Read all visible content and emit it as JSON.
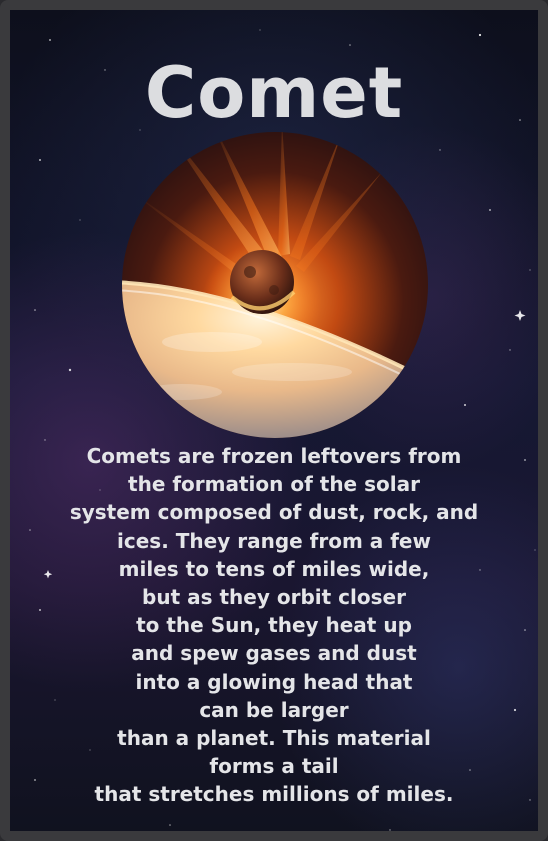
{
  "card": {
    "title": "Comet",
    "description": "Comets are frozen leftovers from\nthe formation of the solar\nsystem composed of dust, rock, and\nices. They range from a few\nmiles to tens of miles wide,\nbut as they orbit closer\nto the Sun, they heat up\nand spew gases and dust\ninto a glowing head that\ncan be larger\nthan a planet. This material\nforms a tail\nthat stretches millions of miles."
  },
  "colors": {
    "frame": "#3a3a3d",
    "title_text": "#dcdde0",
    "body_text": "#e4e5e8",
    "space_dark": "#0d0f1c",
    "fire_orange": "#ff7a1a"
  }
}
